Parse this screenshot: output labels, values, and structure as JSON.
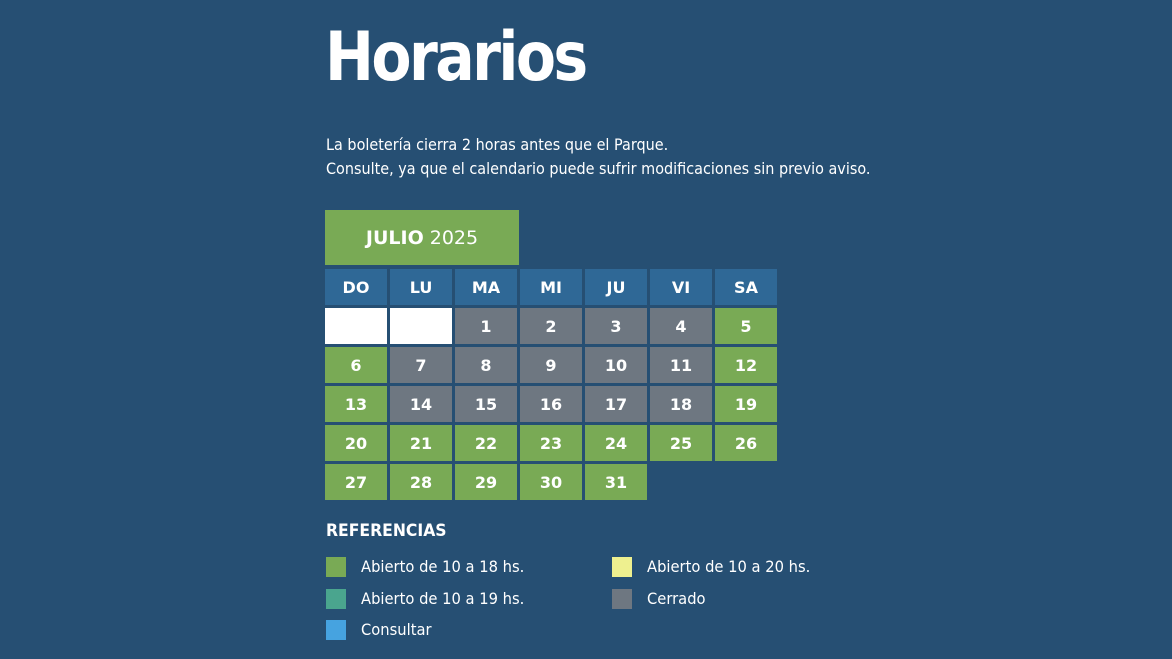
{
  "header": {
    "title": "Horarios",
    "intro_line1": "La boletería cierra 2 horas antes que el Parque.",
    "intro_line2": "Consulte, ya que el calendario puede sufrir modificaciones sin previo aviso."
  },
  "calendar": {
    "month": "JULIO",
    "year": "2025",
    "weekdays": [
      "DO",
      "LU",
      "MA",
      "MI",
      "JU",
      "VI",
      "SA"
    ],
    "weeks": [
      [
        {
          "day": "",
          "status": "blank"
        },
        {
          "day": "",
          "status": "blank"
        },
        {
          "day": "1",
          "status": "closed"
        },
        {
          "day": "2",
          "status": "closed"
        },
        {
          "day": "3",
          "status": "closed"
        },
        {
          "day": "4",
          "status": "closed"
        },
        {
          "day": "5",
          "status": "open18"
        }
      ],
      [
        {
          "day": "6",
          "status": "open18"
        },
        {
          "day": "7",
          "status": "closed"
        },
        {
          "day": "8",
          "status": "closed"
        },
        {
          "day": "9",
          "status": "closed"
        },
        {
          "day": "10",
          "status": "closed"
        },
        {
          "day": "11",
          "status": "closed"
        },
        {
          "day": "12",
          "status": "open18"
        }
      ],
      [
        {
          "day": "13",
          "status": "open18"
        },
        {
          "day": "14",
          "status": "closed"
        },
        {
          "day": "15",
          "status": "closed"
        },
        {
          "day": "16",
          "status": "closed"
        },
        {
          "day": "17",
          "status": "closed"
        },
        {
          "day": "18",
          "status": "closed"
        },
        {
          "day": "19",
          "status": "open18"
        }
      ],
      [
        {
          "day": "20",
          "status": "open18"
        },
        {
          "day": "21",
          "status": "open18"
        },
        {
          "day": "22",
          "status": "open18"
        },
        {
          "day": "23",
          "status": "open18"
        },
        {
          "day": "24",
          "status": "open18"
        },
        {
          "day": "25",
          "status": "open18"
        },
        {
          "day": "26",
          "status": "open18"
        }
      ],
      [
        {
          "day": "27",
          "status": "open18"
        },
        {
          "day": "28",
          "status": "open18"
        },
        {
          "day": "29",
          "status": "open18"
        },
        {
          "day": "30",
          "status": "open18"
        },
        {
          "day": "31",
          "status": "open18"
        }
      ]
    ]
  },
  "references": {
    "title": "REFERENCIAS",
    "items": [
      {
        "label": "Abierto de 10 a 18 hs.",
        "color": "#79aa55"
      },
      {
        "label": "Abierto de 10 a 19 hs.",
        "color": "#4aa58e"
      },
      {
        "label": "Consultar",
        "color": "#46a3e0"
      },
      {
        "label": "Abierto de 10 a 20 hs.",
        "color": "#eef08f"
      },
      {
        "label": "Cerrado",
        "color": "#6e7781"
      }
    ]
  },
  "colors": {
    "background": "#264f73",
    "weekday_header": "#2f6896",
    "open18": "#79aa55",
    "closed": "#6e7781",
    "blank": "#ffffff"
  }
}
